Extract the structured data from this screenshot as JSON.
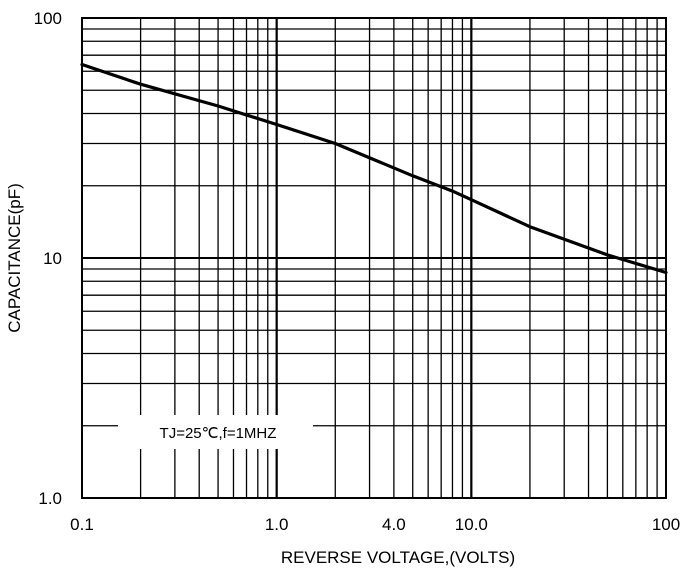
{
  "chart_data": {
    "type": "line",
    "title": "",
    "xlabel": "REVERSE VOLTAGE,(VOLTS)",
    "ylabel": "CAPACITANCE(pF)",
    "x_scale": "log",
    "y_scale": "log",
    "xlim": [
      0.1,
      100
    ],
    "ylim": [
      1.0,
      100
    ],
    "x_ticks": [
      {
        "value": 0.1,
        "label": "0.1"
      },
      {
        "value": 1,
        "label": "1.0"
      },
      {
        "value": 4,
        "label": "4.0"
      },
      {
        "value": 10,
        "label": "10.0"
      },
      {
        "value": 100,
        "label": "100"
      }
    ],
    "y_ticks": [
      {
        "value": 1,
        "label": "1.0"
      },
      {
        "value": 10,
        "label": "10"
      },
      {
        "value": 100,
        "label": "100"
      }
    ],
    "grid": true,
    "annotation": "TJ=25℃,f=1MHZ",
    "series": [
      {
        "x": [
          0.1,
          0.2,
          0.5,
          1.0,
          2.0,
          5.0,
          8.0,
          10.0,
          20.0,
          50.0,
          100.0
        ],
        "y": [
          64,
          53,
          43,
          36,
          30,
          22,
          19,
          17.5,
          13.5,
          10.3,
          8.7
        ]
      }
    ],
    "colors": {
      "line": "#000000",
      "grid": "#000000",
      "background": "#ffffff"
    }
  }
}
